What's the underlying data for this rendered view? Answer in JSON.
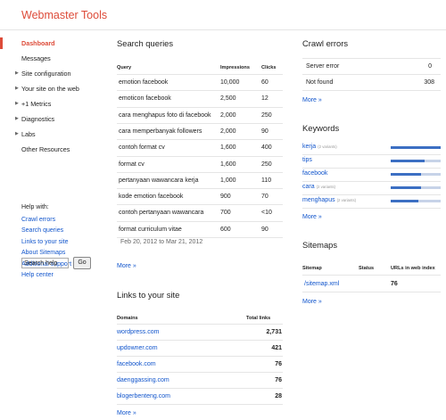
{
  "app": {
    "title": "Webmaster Tools"
  },
  "sidebar": {
    "nav": [
      {
        "label": "Dashboard",
        "expandable": false,
        "active": true
      },
      {
        "label": "Messages",
        "expandable": false,
        "active": false
      },
      {
        "label": "Site configuration",
        "expandable": true,
        "active": false
      },
      {
        "label": "Your site on the web",
        "expandable": true,
        "active": false
      },
      {
        "label": "+1 Metrics",
        "expandable": true,
        "active": false
      },
      {
        "label": "Diagnostics",
        "expandable": true,
        "active": false
      },
      {
        "label": "Labs",
        "expandable": true,
        "active": false
      },
      {
        "label": "Other Resources",
        "expandable": false,
        "active": false
      }
    ],
    "help": {
      "title": "Help with:",
      "links": [
        "Crawl errors",
        "Search queries",
        "Links to your site",
        "About Sitemaps",
        "Additional support",
        "Help center"
      ],
      "search_placeholder": "Search help",
      "go_label": "Go"
    }
  },
  "search_queries": {
    "title": "Search queries",
    "columns": [
      "Query",
      "Impressions",
      "Clicks"
    ],
    "rows": [
      [
        "emotion facebook",
        "10,000",
        "60"
      ],
      [
        "emoticon facebook",
        "2,500",
        "12"
      ],
      [
        "cara menghapus foto di facebook",
        "2,000",
        "250"
      ],
      [
        "cara memperbanyak followers",
        "2,000",
        "90"
      ],
      [
        "contoh format cv",
        "1,600",
        "400"
      ],
      [
        "format cv",
        "1,600",
        "250"
      ],
      [
        "pertanyaan wawancara kerja",
        "1,000",
        "110"
      ],
      [
        "kode emotion facebook",
        "900",
        "70"
      ],
      [
        "contoh pertanyaan wawancara",
        "700",
        "<10"
      ],
      [
        "format curriculum vitae",
        "600",
        "90"
      ]
    ],
    "date_range": "Feb 20, 2012 to Mar 21, 2012",
    "more_label": "More »"
  },
  "links": {
    "title": "Links to your site",
    "columns": [
      "Domains",
      "Total links"
    ],
    "rows": [
      [
        "wordpress.com",
        "2,731"
      ],
      [
        "updowner.com",
        "421"
      ],
      [
        "facebook.com",
        "76"
      ],
      [
        "daenggassing.com",
        "76"
      ],
      [
        "blogerbenteng.com",
        "28"
      ]
    ],
    "more_label": "More »"
  },
  "crawl_errors": {
    "title": "Crawl errors",
    "rows": [
      [
        "Server error",
        "0"
      ],
      [
        "Not found",
        "308"
      ]
    ],
    "more_label": "More »"
  },
  "keywords": {
    "title": "Keywords",
    "rows": [
      {
        "word": "kerja",
        "note": "(2 variants)",
        "level": 1.0
      },
      {
        "word": "tips",
        "note": "",
        "level": 0.67
      },
      {
        "word": "facebook",
        "note": "",
        "level": 0.6
      },
      {
        "word": "cara",
        "note": "(2 variants)",
        "level": 0.6
      },
      {
        "word": "menghapus",
        "note": "(2 variants)",
        "level": 0.55
      }
    ],
    "more_label": "More »"
  },
  "sitemaps": {
    "title": "Sitemaps",
    "columns": [
      "Sitemap",
      "Status",
      "URLs in web index"
    ],
    "rows": [
      [
        "/sitemap.xml",
        "",
        "76"
      ]
    ],
    "more_label": "More »"
  },
  "colors": {
    "accent": "#dd4b39",
    "link": "#1155cc",
    "bar": "#3c6fc3",
    "bar_track": "#c7d3e8"
  }
}
